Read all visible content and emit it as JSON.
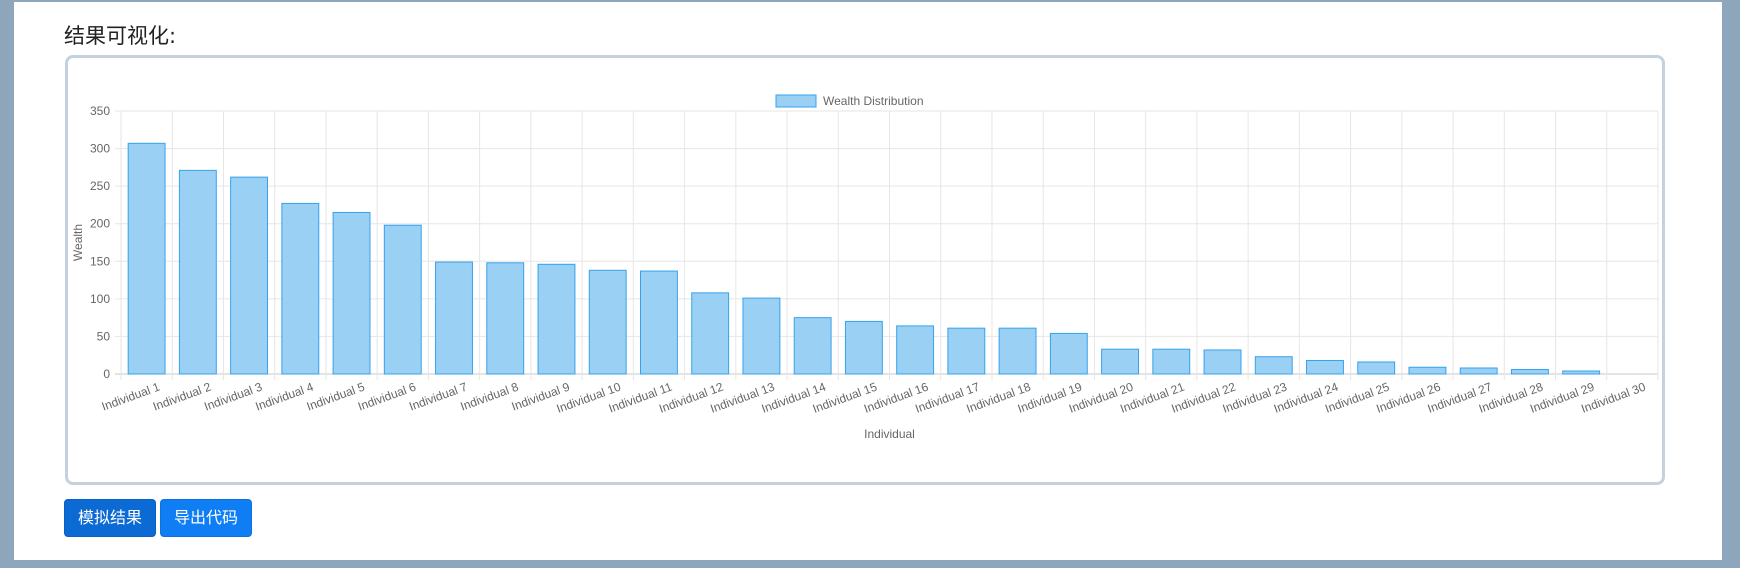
{
  "section": {
    "title": "结果可视化:"
  },
  "buttons": {
    "simulate_label": "模拟结果",
    "export_label": "导出代码"
  },
  "chart_data": {
    "type": "bar",
    "title": "",
    "xlabel": "Individual",
    "ylabel": "Wealth",
    "legend": {
      "position": "top",
      "entries": [
        "Wealth Distribution"
      ]
    },
    "grid": true,
    "ylim": [
      0,
      350
    ],
    "yticks": [
      0,
      50,
      100,
      150,
      200,
      250,
      300,
      350
    ],
    "categories": [
      "Individual 1",
      "Individual 2",
      "Individual 3",
      "Individual 4",
      "Individual 5",
      "Individual 6",
      "Individual 7",
      "Individual 8",
      "Individual 9",
      "Individual 10",
      "Individual 11",
      "Individual 12",
      "Individual 13",
      "Individual 14",
      "Individual 15",
      "Individual 16",
      "Individual 17",
      "Individual 18",
      "Individual 19",
      "Individual 20",
      "Individual 21",
      "Individual 22",
      "Individual 23",
      "Individual 24",
      "Individual 25",
      "Individual 26",
      "Individual 27",
      "Individual 28",
      "Individual 29",
      "Individual 30"
    ],
    "series": [
      {
        "name": "Wealth Distribution",
        "color": "#9bd0f5",
        "border_color": "#36a2eb",
        "values": [
          307,
          271,
          262,
          227,
          215,
          198,
          149,
          148,
          146,
          138,
          137,
          108,
          101,
          75,
          70,
          64,
          61,
          61,
          54,
          33,
          33,
          32,
          23,
          18,
          16,
          9,
          8,
          6,
          4,
          0
        ]
      }
    ]
  }
}
